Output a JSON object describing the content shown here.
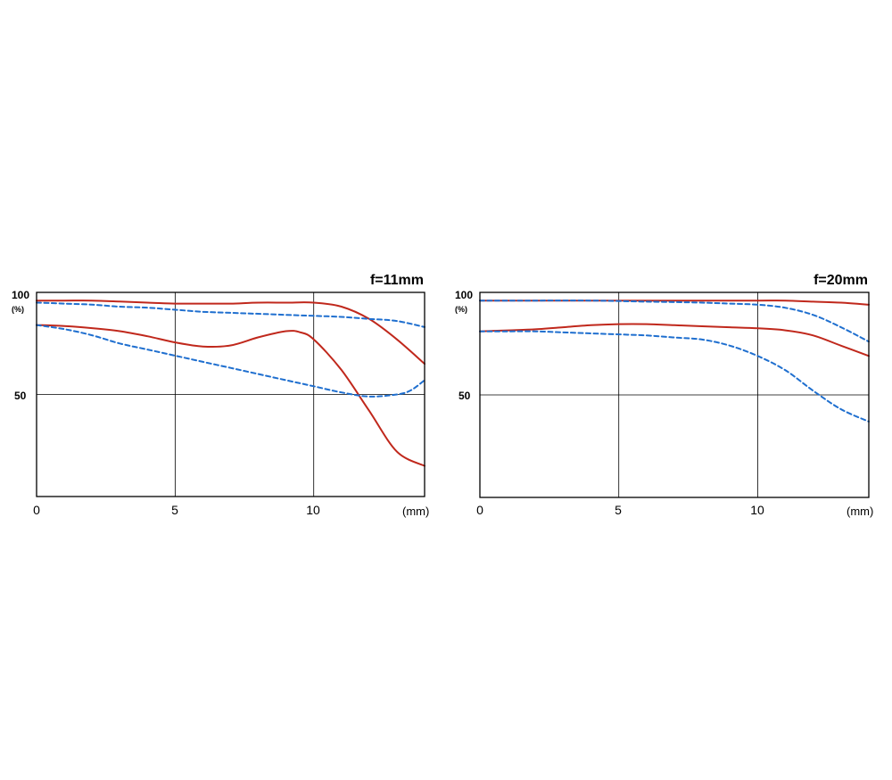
{
  "chart_data": [
    {
      "type": "line",
      "title": "f=11mm",
      "xlabel": "(mm)",
      "ylabel": "(%)",
      "xlim": [
        0,
        14
      ],
      "ylim": [
        0,
        100
      ],
      "xticks": [
        "0",
        "5",
        "10"
      ],
      "yticks": [
        "100",
        "50"
      ],
      "grid": true,
      "series": [
        {
          "color": "#c0281c",
          "dash": "solid",
          "x": [
            0,
            1,
            2,
            3,
            4,
            5,
            6,
            7,
            8,
            9,
            10,
            11,
            12,
            13,
            14
          ],
          "y": [
            96,
            96,
            96,
            95.5,
            95,
            94.5,
            94.5,
            94.5,
            95,
            95,
            95,
            93,
            87,
            77,
            65
          ]
        },
        {
          "color": "#c0281c",
          "dash": "solid",
          "x": [
            0,
            1,
            2,
            3,
            4,
            5,
            6,
            7,
            8,
            9,
            9.5,
            10,
            11,
            12,
            13,
            14
          ],
          "y": [
            84,
            83.5,
            82.5,
            81,
            78.5,
            75.5,
            73.5,
            74,
            78,
            81,
            80.5,
            77,
            62,
            42,
            22,
            15
          ]
        },
        {
          "color": "#1f6fcf",
          "dash": "dashed",
          "x": [
            0,
            1,
            2,
            3,
            4,
            5,
            6,
            7,
            8,
            9,
            10,
            11,
            12,
            13,
            14
          ],
          "y": [
            95,
            94.5,
            94,
            93,
            92.5,
            91.5,
            90.5,
            90,
            89.5,
            89,
            88.5,
            88,
            87,
            86,
            83
          ]
        },
        {
          "color": "#1f6fcf",
          "dash": "dashed",
          "x": [
            0,
            1,
            2,
            3,
            4,
            5,
            6,
            7,
            8,
            9,
            10,
            11,
            12,
            13,
            13.5,
            14
          ],
          "y": [
            84,
            82,
            79,
            75,
            72,
            69,
            66,
            63,
            60,
            57,
            54,
            51,
            49,
            50,
            52,
            57
          ]
        }
      ]
    },
    {
      "type": "line",
      "title": "f=20mm",
      "xlabel": "(mm)",
      "ylabel": "(%)",
      "xlim": [
        0,
        14
      ],
      "ylim": [
        0,
        100
      ],
      "xticks": [
        "0",
        "5",
        "10"
      ],
      "yticks": [
        "100",
        "50"
      ],
      "grid": true,
      "series": [
        {
          "color": "#c0281c",
          "dash": "solid",
          "x": [
            0,
            2,
            4,
            6,
            8,
            10,
            11,
            12,
            13,
            14
          ],
          "y": [
            96,
            96,
            96,
            96,
            96,
            96,
            96,
            95.5,
            95,
            94
          ]
        },
        {
          "color": "#c0281c",
          "dash": "solid",
          "x": [
            0,
            1,
            2,
            3,
            4,
            5,
            6,
            7,
            8,
            9,
            10,
            11,
            12,
            13,
            14
          ],
          "y": [
            81,
            81.5,
            82,
            83,
            84,
            84.5,
            84.5,
            84,
            83.5,
            83,
            82.5,
            81.5,
            79,
            74,
            69
          ]
        },
        {
          "color": "#1f6fcf",
          "dash": "dashed",
          "x": [
            0,
            2,
            4,
            6,
            8,
            9,
            10,
            11,
            12,
            13,
            14
          ],
          "y": [
            96,
            96,
            96,
            95.5,
            95,
            94.5,
            94,
            92.5,
            89,
            83,
            76
          ]
        },
        {
          "color": "#1f6fcf",
          "dash": "dashed",
          "x": [
            0,
            1,
            2,
            3,
            4,
            5,
            6,
            7,
            8,
            9,
            10,
            11,
            12,
            13,
            14
          ],
          "y": [
            81,
            81,
            81,
            80.5,
            80,
            79.5,
            79,
            78,
            77,
            74,
            69,
            62,
            52,
            43,
            37
          ]
        }
      ]
    }
  ]
}
